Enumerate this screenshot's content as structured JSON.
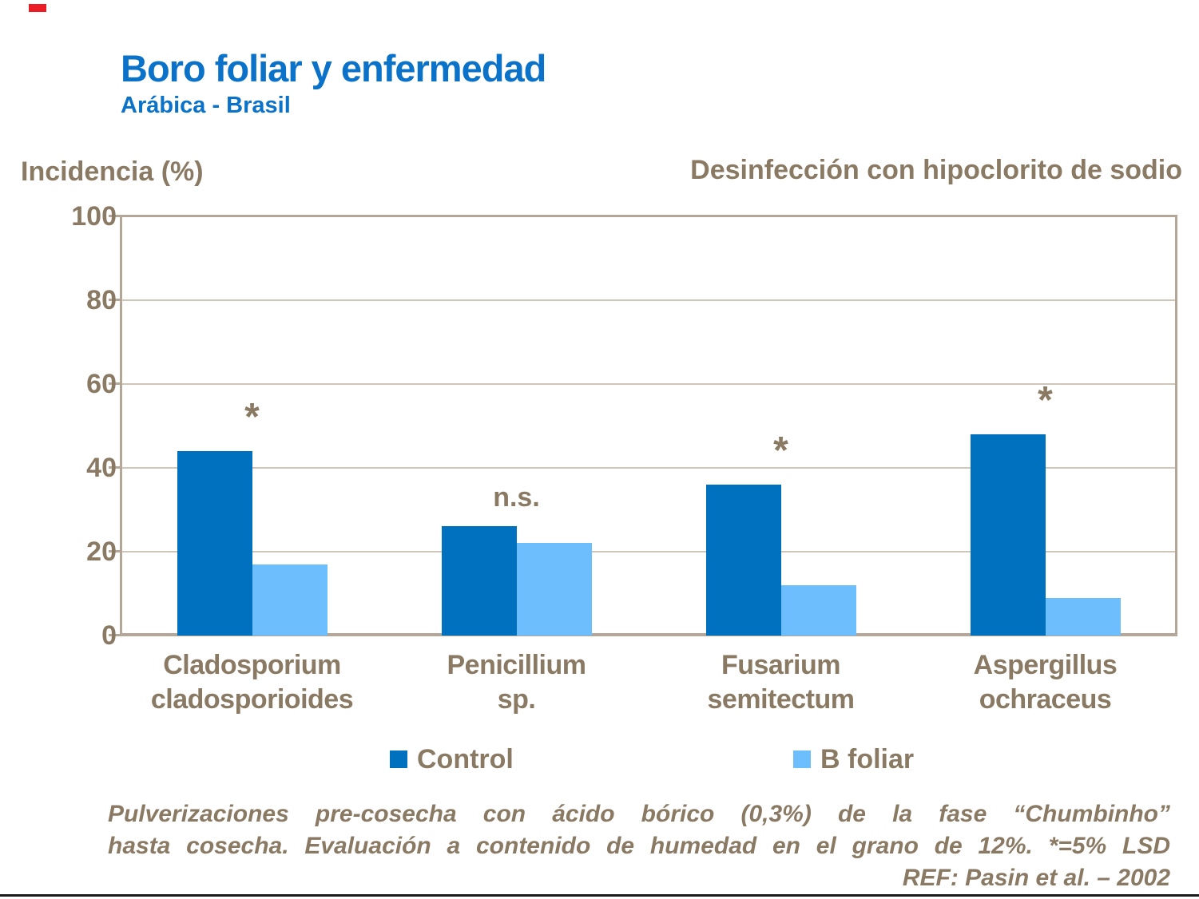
{
  "slide": {
    "title": "Boro foliar y enfermedad",
    "subtitle": "Arábica - Brasil",
    "right_heading": "Desinfección con hipoclorito de sodio",
    "footnote_line1": "Pulverizaciones pre-cosecha con ácido bórico (0,3%) de la fase “Chumbinho”",
    "footnote_line2": "hasta cosecha. Evaluación a contenido de humedad en el grano de 12%. *=5% LSD",
    "reference": "REF: Pasin et al. – 2002"
  },
  "colors": {
    "title_blue": "#0A72C8",
    "text_brown": "#8A7A64",
    "axis_tan": "#B5A798",
    "gridline_tan": "#CFC5B8",
    "control_bar": "#0071BF",
    "bfoliar_bar": "#6CBEFC",
    "red_mark": "#EC1C24",
    "bottom_line": "#1A1A1A"
  },
  "chart_data": {
    "type": "bar",
    "title": "Desinfección con hipoclorito de sodio",
    "ylabel": "Incidencia (%)",
    "categories": [
      "Cladosporium cladosporioides",
      "Penicillium sp.",
      "Fusarium semitectum",
      "Aspergillus ochraceus"
    ],
    "categories_lines": [
      [
        "Cladosporium",
        "cladosporioides"
      ],
      [
        "Penicillium",
        "sp."
      ],
      [
        "Fusarium",
        "semitectum"
      ],
      [
        "Aspergillus",
        "ochraceus"
      ]
    ],
    "series": [
      {
        "name": "Control",
        "color": "#0071BF",
        "values": [
          44,
          26,
          36,
          48
        ]
      },
      {
        "name": "B foliar",
        "color": "#6CBEFC",
        "values": [
          17,
          22,
          12,
          9
        ]
      }
    ],
    "group_annotations": [
      "*",
      "n.s.",
      "*",
      "*"
    ],
    "yticks": [
      0,
      20,
      40,
      60,
      80,
      100
    ],
    "ylim": [
      0,
      100
    ],
    "grid": true,
    "legend_position": "bottom"
  }
}
